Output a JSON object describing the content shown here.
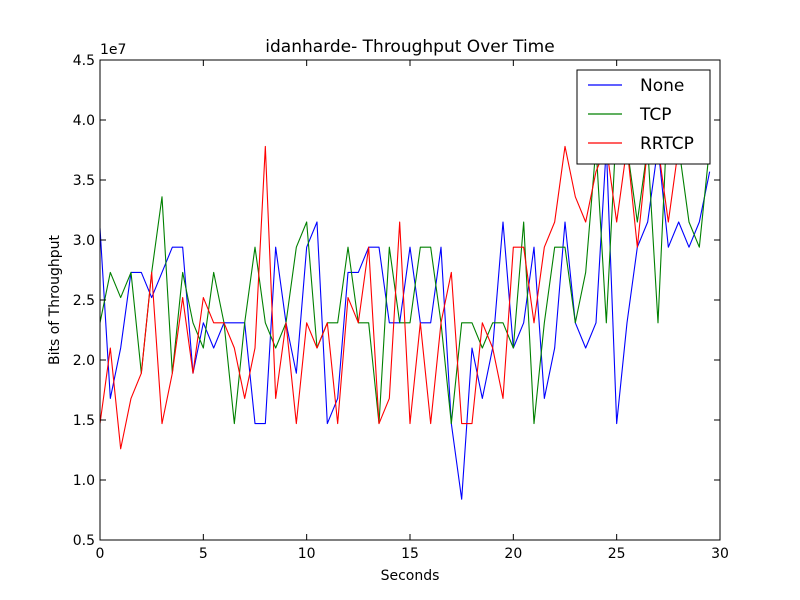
{
  "chart_data": {
    "type": "line",
    "title": "idanharde- Throughput Over Time",
    "xlabel": "Seconds",
    "ylabel": "Bits of Throughput",
    "offset_text": "1e7",
    "xlim": [
      0,
      30
    ],
    "ylim": [
      0.5,
      4.5
    ],
    "xticks": [
      0,
      5,
      10,
      15,
      20,
      25,
      30
    ],
    "yticks": [
      0.5,
      1.0,
      1.5,
      2.0,
      2.5,
      3.0,
      3.5,
      4.0,
      4.5
    ],
    "grid": false,
    "legend_position": "top-right",
    "x": [
      0,
      0.5,
      1,
      1.5,
      2,
      2.5,
      3,
      3.5,
      4,
      4.5,
      5,
      5.5,
      6,
      6.5,
      7,
      7.5,
      8,
      8.5,
      9,
      9.5,
      10,
      10.5,
      11,
      11.5,
      12,
      12.5,
      13,
      13.5,
      14,
      14.5,
      15,
      15.5,
      16,
      16.5,
      17,
      17.5,
      18,
      18.5,
      19,
      19.5,
      20,
      20.5,
      21,
      21.5,
      22,
      22.5,
      23,
      23.5,
      24,
      24.5,
      25,
      25.5,
      26,
      26.5,
      27,
      27.5,
      28,
      28.5,
      29,
      29.5
    ],
    "series": [
      {
        "name": "None",
        "color": "#0000ff",
        "values": [
          3.1,
          1.68,
          2.1,
          2.73,
          2.73,
          2.52,
          2.73,
          2.94,
          2.94,
          1.89,
          2.31,
          2.1,
          2.31,
          2.31,
          2.31,
          1.47,
          1.47,
          2.94,
          2.31,
          1.89,
          2.94,
          3.15,
          1.47,
          1.68,
          2.73,
          2.73,
          2.94,
          2.94,
          2.31,
          2.31,
          2.94,
          2.31,
          2.31,
          2.94,
          1.47,
          0.84,
          2.1,
          1.68,
          2.1,
          3.15,
          2.1,
          2.31,
          2.94,
          1.68,
          2.1,
          3.15,
          2.31,
          2.1,
          2.31,
          3.78,
          1.47,
          2.31,
          2.94,
          3.15,
          3.78,
          2.94,
          3.15,
          2.94,
          3.15,
          3.57
        ]
      },
      {
        "name": "TCP",
        "color": "#008000",
        "values": [
          2.31,
          2.73,
          2.52,
          2.73,
          1.89,
          2.73,
          3.36,
          1.89,
          2.73,
          2.31,
          2.1,
          2.73,
          2.31,
          1.47,
          2.31,
          2.94,
          2.31,
          2.1,
          2.31,
          2.94,
          3.15,
          2.1,
          2.31,
          2.31,
          2.94,
          2.31,
          2.31,
          1.47,
          2.94,
          2.31,
          2.31,
          2.94,
          2.94,
          2.31,
          1.47,
          2.31,
          2.31,
          2.1,
          2.31,
          2.31,
          2.1,
          3.15,
          1.47,
          2.31,
          2.94,
          2.94,
          2.31,
          2.73,
          3.78,
          2.31,
          3.99,
          3.78,
          3.15,
          3.78,
          2.31,
          4.2,
          3.78,
          3.15,
          2.94,
          3.78
        ]
      },
      {
        "name": "RRTCP",
        "color": "#ff0000",
        "values": [
          1.47,
          2.1,
          1.26,
          1.68,
          1.89,
          2.73,
          1.47,
          1.89,
          2.52,
          1.89,
          2.52,
          2.31,
          2.31,
          2.1,
          1.68,
          2.1,
          3.78,
          1.68,
          2.31,
          1.47,
          2.31,
          2.1,
          2.31,
          1.47,
          2.52,
          2.31,
          2.94,
          1.47,
          1.68,
          3.15,
          1.47,
          2.31,
          1.47,
          2.31,
          2.73,
          1.47,
          1.47,
          2.31,
          2.1,
          1.68,
          2.94,
          2.94,
          2.31,
          2.94,
          3.15,
          3.78,
          3.36,
          3.15,
          3.57,
          3.78,
          3.15,
          3.78,
          2.94,
          3.78,
          3.78,
          3.15,
          3.78,
          3.99,
          3.99,
          4.2
        ]
      }
    ]
  }
}
